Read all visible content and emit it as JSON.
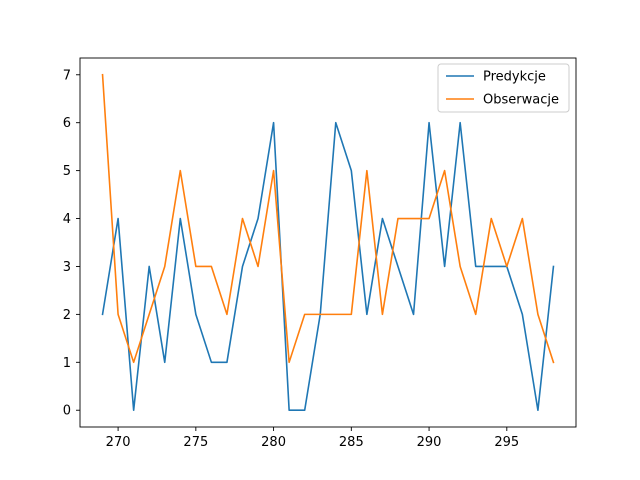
{
  "chart_data": {
    "type": "line",
    "title": "",
    "xlabel": "",
    "ylabel": "",
    "x": [
      269,
      270,
      271,
      272,
      273,
      274,
      275,
      276,
      277,
      278,
      279,
      280,
      281,
      282,
      283,
      284,
      285,
      286,
      287,
      288,
      289,
      290,
      291,
      292,
      293,
      294,
      295,
      296,
      297,
      298
    ],
    "series": [
      {
        "name": "Predykcje",
        "color": "#1f77b4",
        "values": [
          2,
          4,
          0,
          3,
          1,
          4,
          2,
          1,
          1,
          3,
          4,
          6,
          0,
          0,
          2,
          6,
          5,
          2,
          4,
          3,
          2,
          6,
          3,
          6,
          3,
          3,
          3,
          2,
          0,
          3
        ]
      },
      {
        "name": "Obserwacje",
        "color": "#ff7f0e",
        "values": [
          7,
          2,
          1,
          2,
          3,
          5,
          3,
          3,
          2,
          4,
          3,
          5,
          1,
          2,
          2,
          2,
          2,
          5,
          2,
          4,
          4,
          4,
          5,
          3,
          2,
          4,
          3,
          4,
          2,
          1
        ]
      }
    ],
    "xlim": [
      267.55,
      299.45
    ],
    "ylim": [
      -0.35,
      7.35
    ],
    "xticks": [
      270,
      275,
      280,
      285,
      290,
      295
    ],
    "yticks": [
      0,
      1,
      2,
      3,
      4,
      5,
      6,
      7
    ],
    "grid": false,
    "legend_position": "top-right"
  }
}
